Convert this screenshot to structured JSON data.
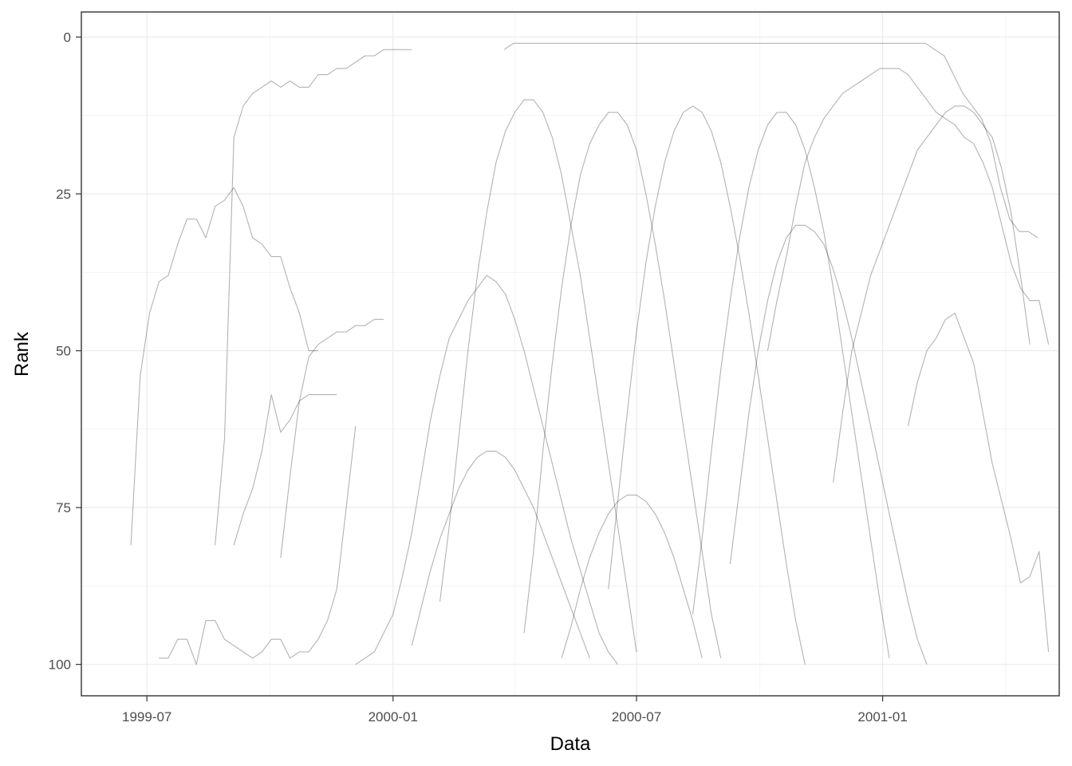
{
  "chart_data": {
    "type": "line",
    "title": "",
    "xlabel": "Data",
    "ylabel": "Rank",
    "x_ticks": [
      "1999-07",
      "2000-01",
      "2000-07",
      "2001-01"
    ],
    "y_ticks": [
      0,
      25,
      50,
      75,
      100
    ],
    "xlim": [
      "1999-05-13",
      "2001-05-13"
    ],
    "ylim": [
      105,
      -4
    ],
    "y_reversed": true,
    "grid": true,
    "line_color": "#000000",
    "line_opacity": 0.3,
    "series": [
      {
        "x": [
          "1999-06-19",
          "1999-06-26",
          "1999-07-03",
          "1999-07-10",
          "1999-07-17",
          "1999-07-24",
          "1999-07-31",
          "1999-08-07",
          "1999-08-14",
          "1999-08-21",
          "1999-08-28",
          "1999-09-04",
          "1999-09-11",
          "1999-09-18",
          "1999-09-25",
          "1999-10-02",
          "1999-10-09",
          "1999-10-16",
          "1999-10-23",
          "1999-10-30",
          "1999-11-06"
        ],
        "y": [
          81,
          54,
          44,
          39,
          38,
          33,
          29,
          29,
          32,
          27,
          26,
          24,
          27,
          32,
          33,
          35,
          35,
          40,
          44,
          50,
          50
        ]
      },
      {
        "x": [
          "1999-08-21",
          "1999-08-28",
          "1999-09-04",
          "1999-09-11",
          "1999-09-18",
          "1999-09-25",
          "1999-10-02",
          "1999-10-09",
          "1999-10-16",
          "1999-10-23",
          "1999-10-30",
          "1999-11-06",
          "1999-11-13",
          "1999-11-20",
          "1999-11-27",
          "1999-12-04",
          "1999-12-11",
          "1999-12-18",
          "1999-12-25",
          "2000-01-01",
          "2000-01-08",
          "2000-01-15"
        ],
        "y": [
          81,
          64,
          16,
          11,
          9,
          8,
          7,
          8,
          7,
          8,
          8,
          6,
          6,
          5,
          5,
          4,
          3,
          3,
          2,
          2,
          2,
          2
        ]
      },
      {
        "x": [
          "1999-07-10",
          "1999-07-17",
          "1999-07-24",
          "1999-07-31",
          "1999-08-07",
          "1999-08-14",
          "1999-08-21",
          "1999-08-28",
          "1999-09-04",
          "1999-09-11",
          "1999-09-18",
          "1999-09-25",
          "1999-10-02",
          "1999-10-09",
          "1999-10-16",
          "1999-10-23",
          "1999-10-30",
          "1999-11-06",
          "1999-11-13",
          "1999-11-20",
          "1999-11-27",
          "1999-12-04"
        ],
        "y": [
          99,
          99,
          96,
          96,
          100,
          93,
          93,
          96,
          97,
          98,
          99,
          98,
          96,
          96,
          99,
          98,
          98,
          96,
          93,
          88,
          75,
          62
        ]
      },
      {
        "x": [
          "1999-09-04",
          "1999-09-11",
          "1999-09-18",
          "1999-09-25",
          "1999-10-02",
          "1999-10-09",
          "1999-10-16",
          "1999-10-23",
          "1999-10-30",
          "1999-11-06",
          "1999-11-13",
          "1999-11-20"
        ],
        "y": [
          81,
          76,
          72,
          66,
          57,
          63,
          61,
          58,
          57,
          57,
          57,
          57
        ]
      },
      {
        "x": [
          "1999-10-09",
          "1999-10-16",
          "1999-10-23",
          "1999-10-30",
          "1999-11-06",
          "1999-11-13",
          "1999-11-20",
          "1999-11-27",
          "1999-12-04",
          "1999-12-11",
          "1999-12-18",
          "1999-12-25"
        ],
        "y": [
          83,
          70,
          58,
          51,
          49,
          48,
          47,
          47,
          46,
          46,
          45,
          45
        ]
      },
      {
        "x": [
          "2000-03-24",
          "2000-03-31",
          "2000-04-07",
          "2000-04-14",
          "2000-04-21",
          "2000-04-28",
          "2000-05-05",
          "2000-05-12",
          "2000-05-19",
          "2000-05-26",
          "2000-06-02",
          "2000-06-09",
          "2000-06-16",
          "2000-06-23",
          "2000-06-30",
          "2000-07-07",
          "2000-07-14",
          "2000-07-21",
          "2000-07-28",
          "2000-08-04",
          "2000-08-11",
          "2000-08-18",
          "2000-08-25",
          "2000-09-01",
          "2000-09-08",
          "2000-09-15",
          "2000-09-22",
          "2000-09-29",
          "2000-10-06",
          "2000-10-13",
          "2000-10-20",
          "2000-10-27",
          "2000-11-03",
          "2000-11-10",
          "2000-11-17",
          "2000-11-24",
          "2000-12-01",
          "2000-12-08",
          "2000-12-15",
          "2000-12-22",
          "2000-12-29",
          "2001-01-05",
          "2001-01-12",
          "2001-01-19",
          "2001-01-26",
          "2001-02-02",
          "2001-02-09",
          "2001-02-16",
          "2001-02-23",
          "2001-03-02",
          "2001-03-09",
          "2001-03-16",
          "2001-03-23",
          "2001-03-30",
          "2001-04-06",
          "2001-04-13",
          "2001-04-20",
          "2001-04-27"
        ],
        "y": [
          2,
          1,
          1,
          1,
          1,
          1,
          1,
          1,
          1,
          1,
          1,
          1,
          1,
          1,
          1,
          1,
          1,
          1,
          1,
          1,
          1,
          1,
          1,
          1,
          1,
          1,
          1,
          1,
          1,
          1,
          1,
          1,
          1,
          1,
          1,
          1,
          1,
          1,
          1,
          1,
          1,
          1,
          1,
          1,
          1,
          1,
          2,
          3,
          6,
          9,
          11,
          13,
          17,
          24,
          29,
          31,
          31,
          32
        ]
      },
      {
        "x": [
          "2000-10-07",
          "2000-10-14",
          "2000-10-21",
          "2000-10-28",
          "2000-11-04",
          "2000-11-11",
          "2000-11-18",
          "2000-11-25",
          "2000-12-02",
          "2000-12-09",
          "2000-12-16",
          "2000-12-23",
          "2000-12-30",
          "2001-01-06",
          "2001-01-13",
          "2001-01-20",
          "2001-01-27",
          "2001-02-03",
          "2001-02-10",
          "2001-02-17",
          "2001-02-24",
          "2001-03-03",
          "2001-03-10",
          "2001-03-17",
          "2001-03-24",
          "2001-03-31",
          "2001-04-07",
          "2001-04-14",
          "2001-04-21",
          "2001-04-28",
          "2001-05-05"
        ],
        "y": [
          50,
          42,
          35,
          27,
          20,
          16,
          13,
          11,
          9,
          8,
          7,
          6,
          5,
          5,
          5,
          6,
          8,
          10,
          12,
          13,
          14,
          16,
          17,
          20,
          24,
          30,
          36,
          40,
          42,
          42,
          49
        ]
      },
      {
        "x": [
          "2000-11-25",
          "2000-12-02",
          "2000-12-09",
          "2000-12-16",
          "2000-12-23",
          "2000-12-30",
          "2001-01-06",
          "2001-01-13",
          "2001-01-20",
          "2001-01-27",
          "2001-02-03",
          "2001-02-10",
          "2001-02-17",
          "2001-02-24",
          "2001-03-03",
          "2001-03-10",
          "2001-03-17",
          "2001-03-24",
          "2001-03-31",
          "2001-04-07",
          "2001-04-14",
          "2001-04-21"
        ],
        "y": [
          71,
          60,
          50,
          44,
          38,
          34,
          30,
          26,
          22,
          18,
          16,
          14,
          12,
          11,
          11,
          12,
          14,
          16,
          21,
          28,
          38,
          49
        ]
      },
      {
        "x": [
          "2001-01-20",
          "2001-01-27",
          "2001-02-03",
          "2001-02-10",
          "2001-02-17",
          "2001-02-24",
          "2001-03-03",
          "2001-03-10",
          "2001-03-17",
          "2001-03-24",
          "2001-03-31",
          "2001-04-07",
          "2001-04-14",
          "2001-04-21",
          "2001-04-28",
          "2001-05-05"
        ],
        "y": [
          62,
          55,
          50,
          48,
          45,
          44,
          48,
          52,
          60,
          68,
          74,
          80,
          87,
          86,
          82,
          98
        ]
      },
      {
        "x": [
          "1999-12-04",
          "1999-12-11",
          "1999-12-18",
          "1999-12-25",
          "2000-01-01",
          "2000-01-08",
          "2000-01-15",
          "2000-01-22",
          "2000-01-29",
          "2000-02-05",
          "2000-02-12",
          "2000-02-19",
          "2000-02-26",
          "2000-03-04",
          "2000-03-11",
          "2000-03-18",
          "2000-03-25",
          "2000-04-01",
          "2000-04-08",
          "2000-04-15",
          "2000-04-22",
          "2000-04-29",
          "2000-05-06",
          "2000-05-13",
          "2000-05-20",
          "2000-05-27",
          "2000-06-03",
          "2000-06-10",
          "2000-06-17"
        ],
        "y": [
          100,
          99,
          98,
          95,
          92,
          86,
          79,
          70,
          61,
          54,
          48,
          45,
          42,
          40,
          38,
          39,
          41,
          45,
          50,
          56,
          62,
          68,
          74,
          80,
          85,
          90,
          95,
          98,
          100
        ]
      },
      {
        "x": [
          "2000-02-05",
          "2000-02-12",
          "2000-02-19",
          "2000-02-26",
          "2000-03-04",
          "2000-03-11",
          "2000-03-18",
          "2000-03-25",
          "2000-04-01",
          "2000-04-08",
          "2000-04-15",
          "2000-04-22",
          "2000-04-29",
          "2000-05-06",
          "2000-05-13",
          "2000-05-20",
          "2000-05-27",
          "2000-06-03",
          "2000-06-10",
          "2000-06-17",
          "2000-06-24",
          "2000-07-01"
        ],
        "y": [
          90,
          78,
          64,
          50,
          38,
          28,
          20,
          15,
          12,
          10,
          10,
          12,
          16,
          22,
          30,
          38,
          48,
          58,
          68,
          78,
          88,
          98
        ]
      },
      {
        "x": [
          "2000-04-08",
          "2000-04-15",
          "2000-04-22",
          "2000-04-29",
          "2000-05-06",
          "2000-05-13",
          "2000-05-20",
          "2000-05-27",
          "2000-06-03",
          "2000-06-10",
          "2000-06-17",
          "2000-06-24",
          "2000-07-01",
          "2000-07-08",
          "2000-07-15",
          "2000-07-22",
          "2000-07-29",
          "2000-08-05",
          "2000-08-12",
          "2000-08-19",
          "2000-08-26",
          "2000-09-02"
        ],
        "y": [
          95,
          82,
          66,
          52,
          40,
          30,
          22,
          17,
          14,
          12,
          12,
          14,
          18,
          25,
          33,
          42,
          52,
          62,
          72,
          82,
          92,
          99
        ]
      },
      {
        "x": [
          "2000-06-10",
          "2000-06-17",
          "2000-06-24",
          "2000-07-01",
          "2000-07-08",
          "2000-07-15",
          "2000-07-22",
          "2000-07-29",
          "2000-08-05",
          "2000-08-12",
          "2000-08-19",
          "2000-08-26",
          "2000-09-02",
          "2000-09-09",
          "2000-09-16",
          "2000-09-23",
          "2000-09-30",
          "2000-10-07",
          "2000-10-14",
          "2000-10-21",
          "2000-10-28",
          "2000-11-04"
        ],
        "y": [
          88,
          74,
          60,
          47,
          36,
          27,
          20,
          15,
          12,
          11,
          12,
          15,
          20,
          27,
          35,
          44,
          54,
          64,
          74,
          84,
          93,
          100
        ]
      },
      {
        "x": [
          "2000-08-12",
          "2000-08-19",
          "2000-08-26",
          "2000-09-02",
          "2000-09-09",
          "2000-09-16",
          "2000-09-23",
          "2000-09-30",
          "2000-10-07",
          "2000-10-14",
          "2000-10-21",
          "2000-10-28",
          "2000-11-04",
          "2000-11-11",
          "2000-11-18",
          "2000-11-25",
          "2000-12-02",
          "2000-12-09",
          "2000-12-16",
          "2000-12-23",
          "2000-12-30",
          "2001-01-06"
        ],
        "y": [
          92,
          80,
          66,
          53,
          42,
          32,
          24,
          18,
          14,
          12,
          12,
          14,
          18,
          24,
          31,
          40,
          50,
          60,
          70,
          80,
          90,
          99
        ]
      },
      {
        "x": [
          "2000-01-15",
          "2000-01-22",
          "2000-01-29",
          "2000-02-05",
          "2000-02-12",
          "2000-02-19",
          "2000-02-26",
          "2000-03-04",
          "2000-03-11",
          "2000-03-18",
          "2000-03-25",
          "2000-04-01",
          "2000-04-08",
          "2000-04-15",
          "2000-04-22",
          "2000-04-29",
          "2000-05-06",
          "2000-05-13",
          "2000-05-20",
          "2000-05-27"
        ],
        "y": [
          97,
          91,
          85,
          80,
          76,
          72,
          69,
          67,
          66,
          66,
          67,
          69,
          72,
          75,
          79,
          83,
          87,
          91,
          95,
          99
        ]
      },
      {
        "x": [
          "2000-05-06",
          "2000-05-13",
          "2000-05-20",
          "2000-05-27",
          "2000-06-03",
          "2000-06-10",
          "2000-06-17",
          "2000-06-24",
          "2000-07-01",
          "2000-07-08",
          "2000-07-15",
          "2000-07-22",
          "2000-07-29",
          "2000-08-05",
          "2000-08-12",
          "2000-08-19"
        ],
        "y": [
          99,
          94,
          88,
          83,
          79,
          76,
          74,
          73,
          73,
          74,
          76,
          79,
          83,
          88,
          93,
          99
        ]
      },
      {
        "x": [
          "2000-09-09",
          "2000-09-16",
          "2000-09-23",
          "2000-09-30",
          "2000-10-07",
          "2000-10-14",
          "2000-10-21",
          "2000-10-28",
          "2000-11-04",
          "2000-11-11",
          "2000-11-18",
          "2000-11-25",
          "2000-12-02",
          "2000-12-09",
          "2000-12-16",
          "2000-12-23",
          "2000-12-30",
          "2001-01-06",
          "2001-01-13",
          "2001-01-20",
          "2001-01-27",
          "2001-02-03"
        ],
        "y": [
          84,
          72,
          60,
          50,
          42,
          36,
          32,
          30,
          30,
          31,
          33,
          37,
          42,
          48,
          55,
          62,
          69,
          76,
          83,
          90,
          96,
          100
        ]
      }
    ]
  }
}
